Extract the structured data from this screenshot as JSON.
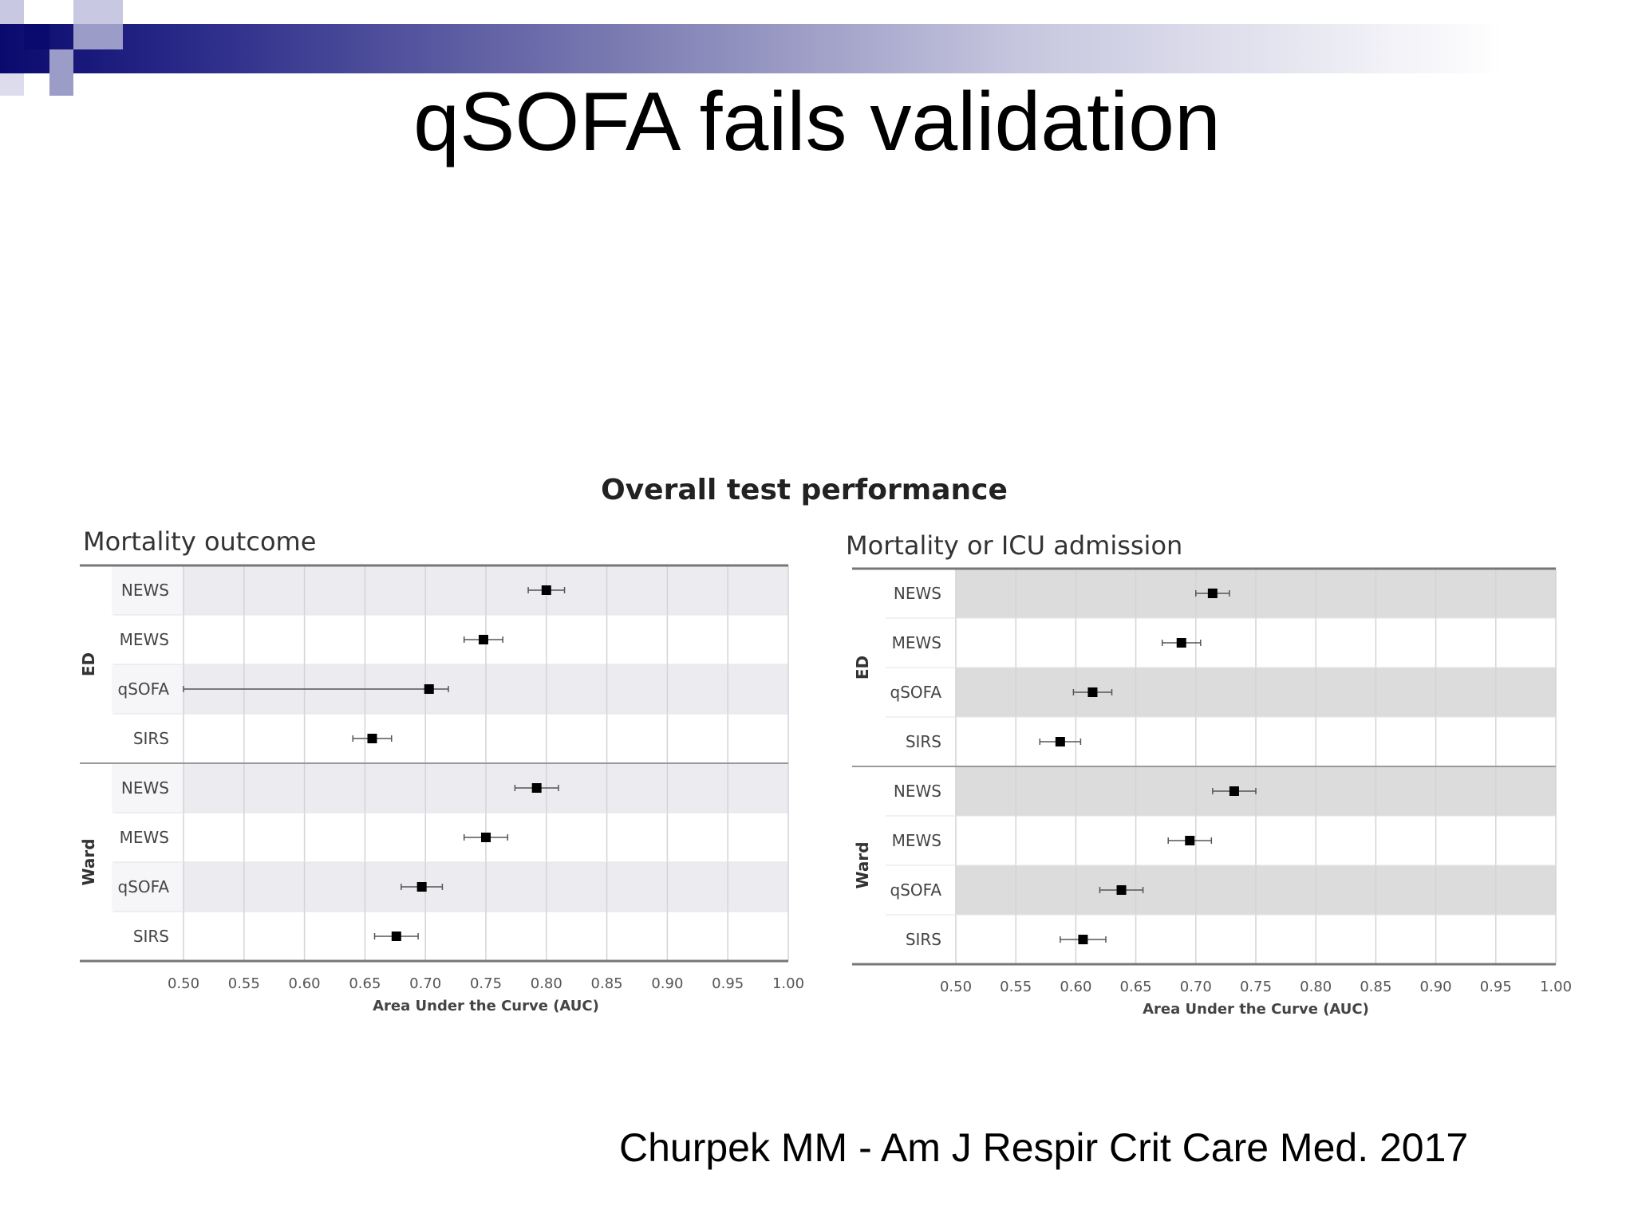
{
  "slide": {
    "title": "qSOFA fails validation",
    "citation": "Churpek MM - Am J Respir Crit Care Med. 2017"
  },
  "figure": {
    "title": "Overall test performance"
  },
  "colors": {
    "header_band_start": "#0a0a6e",
    "header_band_end": "#ffffff",
    "left_shaded_row": "#ececf0",
    "right_shaded_row": "#dcdcdc",
    "marker": "#000000"
  },
  "chart_data": [
    {
      "type": "scatter",
      "subtitle": "Mortality outcome",
      "xlabel": "Area Under the Curve (AUC)",
      "xlim": [
        0.5,
        1.0
      ],
      "xticks": [
        "0.50",
        "0.55",
        "0.60",
        "0.65",
        "0.70",
        "0.75",
        "0.80",
        "0.85",
        "0.90",
        "0.95",
        "1.00"
      ],
      "grid": true,
      "groups": [
        {
          "name": "ED",
          "rows": [
            {
              "label": "NEWS",
              "auc": 0.8,
              "lo": 0.785,
              "hi": 0.815
            },
            {
              "label": "MEWS",
              "auc": 0.748,
              "lo": 0.732,
              "hi": 0.764
            },
            {
              "label": "qSOFA",
              "auc": 0.703,
              "lo": 0.187,
              "hi": 0.719
            },
            {
              "label": "SIRS",
              "auc": 0.656,
              "lo": 0.64,
              "hi": 0.672
            }
          ]
        },
        {
          "name": "Ward",
          "rows": [
            {
              "label": "NEWS",
              "auc": 0.792,
              "lo": 0.774,
              "hi": 0.81
            },
            {
              "label": "MEWS",
              "auc": 0.75,
              "lo": 0.732,
              "hi": 0.768
            },
            {
              "label": "qSOFA",
              "auc": 0.697,
              "lo": 0.68,
              "hi": 0.714
            },
            {
              "label": "SIRS",
              "auc": 0.676,
              "lo": 0.658,
              "hi": 0.694
            }
          ]
        }
      ]
    },
    {
      "type": "scatter",
      "subtitle": "Mortality or ICU admission",
      "xlabel": "Area Under the Curve (AUC)",
      "xlim": [
        0.5,
        1.0
      ],
      "xticks": [
        "0.50",
        "0.55",
        "0.60",
        "0.65",
        "0.70",
        "0.75",
        "0.80",
        "0.85",
        "0.90",
        "0.95",
        "1.00"
      ],
      "grid": true,
      "groups": [
        {
          "name": "ED",
          "rows": [
            {
              "label": "NEWS",
              "auc": 0.714,
              "lo": 0.7,
              "hi": 0.728
            },
            {
              "label": "MEWS",
              "auc": 0.688,
              "lo": 0.672,
              "hi": 0.704
            },
            {
              "label": "qSOFA",
              "auc": 0.614,
              "lo": 0.598,
              "hi": 0.63
            },
            {
              "label": "SIRS",
              "auc": 0.587,
              "lo": 0.57,
              "hi": 0.604
            }
          ]
        },
        {
          "name": "Ward",
          "rows": [
            {
              "label": "NEWS",
              "auc": 0.732,
              "lo": 0.714,
              "hi": 0.75
            },
            {
              "label": "MEWS",
              "auc": 0.695,
              "lo": 0.677,
              "hi": 0.713
            },
            {
              "label": "qSOFA",
              "auc": 0.638,
              "lo": 0.62,
              "hi": 0.656
            },
            {
              "label": "SIRS",
              "auc": 0.606,
              "lo": 0.587,
              "hi": 0.625
            }
          ]
        }
      ]
    }
  ]
}
